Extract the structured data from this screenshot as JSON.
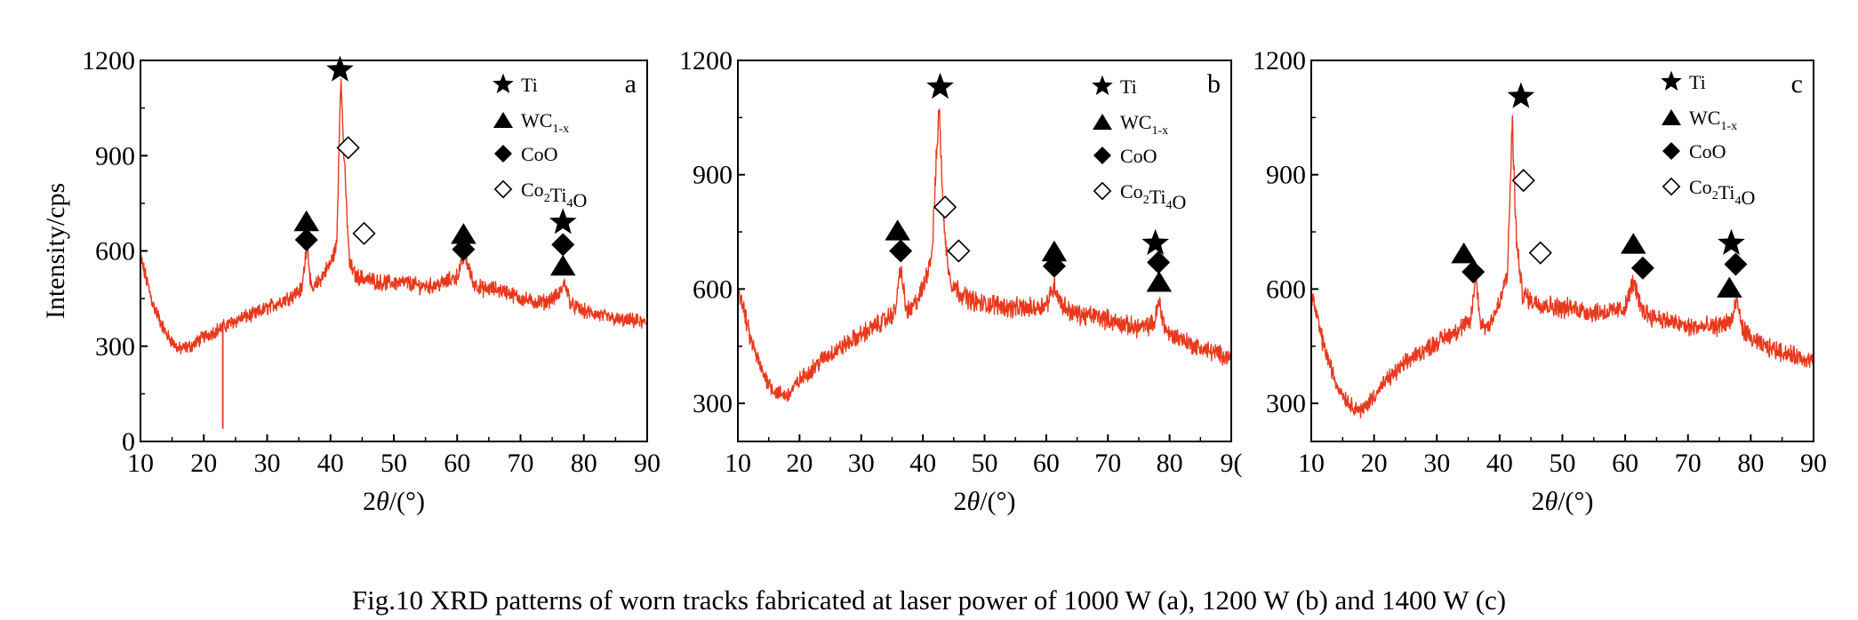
{
  "caption": "Fig.10    XRD patterns of worn tracks fabricated at laser power of 1000 W (a), 1200 W (b) and 1400 W (c)",
  "colors": {
    "pattern": "#e8391d",
    "axis": "#000000"
  },
  "legend_entries": [
    {
      "symbol": "filled-star",
      "label": "Ti"
    },
    {
      "symbol": "filled-triangle",
      "label": "WC",
      "sub": "1-x"
    },
    {
      "symbol": "filled-diamond",
      "label": "CoO"
    },
    {
      "symbol": "open-diamond",
      "label": "Co",
      "sub": "2",
      "label2": "Ti",
      "sub2": "4",
      "label3": "O"
    }
  ],
  "chart_data": [
    {
      "type": "line",
      "panel": "a",
      "ylabel": "Intensity/cps",
      "xlabel": "2θ/(°)",
      "xlim": [
        10,
        90
      ],
      "ylim": [
        0,
        1200
      ],
      "xticks": [
        "10",
        "20",
        "30",
        "40",
        "50",
        "60",
        "70",
        "80",
        "90"
      ],
      "yticks": [
        "0",
        "300",
        "600",
        "900",
        "1200"
      ],
      "series": [
        {
          "x": [
            10,
            12,
            14,
            16,
            18,
            20,
            22,
            24,
            26,
            28,
            30,
            32,
            34,
            35.5,
            36.3,
            37,
            38,
            40,
            41,
            41.6,
            42.2,
            43,
            44,
            46,
            48,
            50,
            52,
            54,
            56,
            58,
            60,
            61.2,
            62.5,
            64,
            66,
            68,
            70,
            72,
            74,
            76,
            77,
            78,
            80,
            82,
            84,
            86,
            88,
            90
          ],
          "y": [
            580,
            430,
            340,
            290,
            300,
            330,
            350,
            370,
            390,
            400,
            420,
            440,
            460,
            480,
            630,
            470,
            500,
            560,
            620,
            1160,
            870,
            560,
            520,
            510,
            500,
            500,
            500,
            490,
            490,
            500,
            520,
            590,
            500,
            480,
            480,
            470,
            450,
            440,
            440,
            460,
            500,
            430,
            410,
            400,
            390,
            380,
            380,
            370
          ]
        }
      ],
      "dip": {
        "x": 23,
        "y": 40
      },
      "markers": [
        {
          "x": 41.5,
          "y": 1170,
          "shape": "filled-star"
        },
        {
          "x": 42.8,
          "y": 925,
          "shape": "open-diamond"
        },
        {
          "x": 45.3,
          "y": 655,
          "shape": "open-diamond"
        },
        {
          "x": 36.2,
          "y": 695,
          "shape": "filled-triangle"
        },
        {
          "x": 36.2,
          "y": 635,
          "shape": "filled-diamond"
        },
        {
          "x": 61,
          "y": 655,
          "shape": "filled-triangle"
        },
        {
          "x": 61,
          "y": 605,
          "shape": "filled-diamond"
        },
        {
          "x": 76.7,
          "y": 690,
          "shape": "filled-star"
        },
        {
          "x": 76.7,
          "y": 620,
          "shape": "filled-diamond"
        },
        {
          "x": 76.7,
          "y": 555,
          "shape": "filled-triangle"
        }
      ]
    },
    {
      "type": "line",
      "panel": "b",
      "ylabel": "",
      "xlabel": "2θ/(°)",
      "xlim": [
        10,
        90
      ],
      "ylim": [
        200,
        1200
      ],
      "xticks": [
        "10",
        "20",
        "30",
        "40",
        "50",
        "60",
        "70",
        "80",
        "9("
      ],
      "yticks": [
        "300",
        "600",
        "900",
        "1200"
      ],
      "series": [
        {
          "x": [
            10,
            12,
            14,
            16,
            18,
            20,
            22,
            24,
            26,
            28,
            30,
            32,
            34,
            35.5,
            36.4,
            37.2,
            38,
            40,
            41.5,
            42.6,
            43.5,
            44.5,
            46,
            48,
            50,
            52,
            54,
            56,
            58,
            60,
            61.3,
            62.5,
            64,
            66,
            68,
            70,
            72,
            74,
            76,
            77.5,
            78.3,
            79.2,
            80,
            82,
            84,
            86,
            88,
            90
          ],
          "y": [
            610,
            470,
            380,
            330,
            320,
            360,
            390,
            420,
            440,
            460,
            480,
            500,
            520,
            540,
            660,
            550,
            540,
            600,
            700,
            1080,
            740,
            620,
            590,
            570,
            560,
            560,
            550,
            550,
            550,
            560,
            610,
            560,
            540,
            530,
            530,
            520,
            510,
            500,
            500,
            510,
            570,
            500,
            480,
            470,
            450,
            440,
            430,
            420
          ]
        }
      ],
      "markers": [
        {
          "x": 42.8,
          "y": 1130,
          "shape": "filled-star"
        },
        {
          "x": 43.6,
          "y": 815,
          "shape": "open-diamond"
        },
        {
          "x": 45.8,
          "y": 700,
          "shape": "open-diamond"
        },
        {
          "x": 35.9,
          "y": 755,
          "shape": "filled-triangle"
        },
        {
          "x": 36.4,
          "y": 700,
          "shape": "filled-diamond"
        },
        {
          "x": 61.3,
          "y": 700,
          "shape": "filled-triangle"
        },
        {
          "x": 61.3,
          "y": 660,
          "shape": "filled-diamond"
        },
        {
          "x": 77.7,
          "y": 720,
          "shape": "filled-star"
        },
        {
          "x": 78.2,
          "y": 670,
          "shape": "filled-diamond"
        },
        {
          "x": 78.3,
          "y": 620,
          "shape": "filled-triangle"
        }
      ]
    },
    {
      "type": "line",
      "panel": "c",
      "ylabel": "",
      "xlabel": "2θ/(°)",
      "xlim": [
        10,
        90
      ],
      "ylim": [
        200,
        1200
      ],
      "xticks": [
        "10",
        "20",
        "30",
        "40",
        "50",
        "60",
        "70",
        "80",
        "90"
      ],
      "yticks": [
        "300",
        "600",
        "900",
        "1200"
      ],
      "series": [
        {
          "x": [
            10,
            12,
            14,
            16,
            18,
            20,
            22,
            24,
            26,
            28,
            30,
            32,
            34,
            35.3,
            36.2,
            37,
            38,
            40,
            41.3,
            42,
            42.7,
            43.6,
            45,
            47,
            50,
            52,
            54,
            56,
            58,
            60,
            61.3,
            62.5,
            64,
            66,
            68,
            70,
            72,
            74,
            76,
            77,
            77.8,
            78.6,
            80,
            82,
            84,
            86,
            88,
            90
          ],
          "y": [
            590,
            450,
            350,
            300,
            280,
            320,
            360,
            390,
            420,
            440,
            460,
            480,
            500,
            510,
            630,
            510,
            500,
            560,
            650,
            1040,
            720,
            590,
            570,
            560,
            550,
            550,
            540,
            540,
            540,
            550,
            620,
            550,
            530,
            520,
            510,
            500,
            500,
            500,
            510,
            520,
            570,
            500,
            470,
            450,
            440,
            430,
            420,
            410
          ]
        }
      ],
      "markers": [
        {
          "x": 43.4,
          "y": 1105,
          "shape": "filled-star"
        },
        {
          "x": 43.8,
          "y": 885,
          "shape": "open-diamond"
        },
        {
          "x": 46.5,
          "y": 695,
          "shape": "open-diamond"
        },
        {
          "x": 34.3,
          "y": 695,
          "shape": "filled-triangle"
        },
        {
          "x": 35.8,
          "y": 645,
          "shape": "filled-diamond"
        },
        {
          "x": 61.3,
          "y": 720,
          "shape": "filled-triangle"
        },
        {
          "x": 62.8,
          "y": 655,
          "shape": "filled-diamond"
        },
        {
          "x": 76.9,
          "y": 720,
          "shape": "filled-star"
        },
        {
          "x": 76.6,
          "y": 605,
          "shape": "filled-triangle"
        },
        {
          "x": 77.6,
          "y": 665,
          "shape": "filled-diamond"
        }
      ]
    }
  ]
}
